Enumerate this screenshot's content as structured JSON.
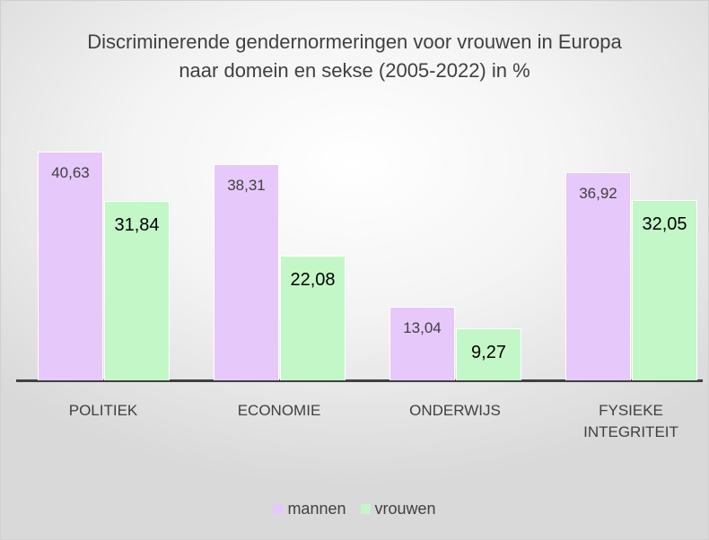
{
  "chart_data": {
    "type": "bar",
    "title": "Discriminerende gendernormeringen voor vrouwen in Europa naar domein en sekse (2005-2022) in %",
    "categories": [
      "POLITIEK",
      "ECONOMIE",
      "ONDERWIJS",
      "FYSIEKE INTEGRITEIT"
    ],
    "series": [
      {
        "name": "mannen",
        "color": "#e6c8fa",
        "values": [
          40.63,
          38.31,
          13.04,
          36.92
        ],
        "value_labels": [
          "40,63",
          "38,31",
          "13,04",
          "36,92"
        ]
      },
      {
        "name": "vrouwen",
        "color": "#c4f7c8",
        "values": [
          31.84,
          22.08,
          9.27,
          32.05
        ],
        "value_labels": [
          "31,84",
          "22,08",
          "9,27",
          "32,05"
        ]
      }
    ],
    "legend": "bottom"
  }
}
